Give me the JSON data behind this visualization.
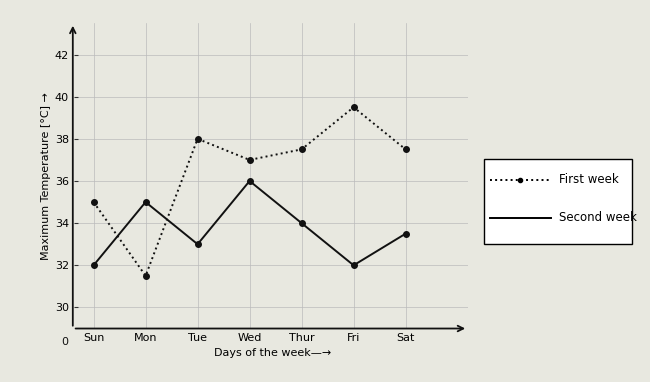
{
  "days": [
    "Sun",
    "Mon",
    "Tue",
    "Wed",
    "Thur",
    "Fri",
    "Sat"
  ],
  "first_week": [
    35,
    31.5,
    38,
    37,
    37.5,
    39.5,
    37.5
  ],
  "second_week": [
    32,
    35,
    33,
    36,
    34,
    32,
    33.5
  ],
  "first_week_label": "First week",
  "second_week_label": "Second week",
  "xlabel": "Days of the week—▶",
  "ylabel": "Maximum Temperature [°C] →",
  "yticks": [
    30,
    32,
    34,
    36,
    38,
    40,
    42
  ],
  "ylim": [
    29,
    43.5
  ],
  "xlim": [
    -0.3,
    7.2
  ],
  "bg_color": "#e8e8e0",
  "plot_bg_color": "#e8e8e0",
  "line_color": "#111111",
  "first_week_linestyle": "dotted",
  "second_week_linestyle": "solid",
  "marker": "o",
  "markersize": 4,
  "linewidth": 1.4,
  "grid_color": "#bbbbbb",
  "title_fontsize": 9,
  "tick_fontsize": 8,
  "label_fontsize": 8
}
